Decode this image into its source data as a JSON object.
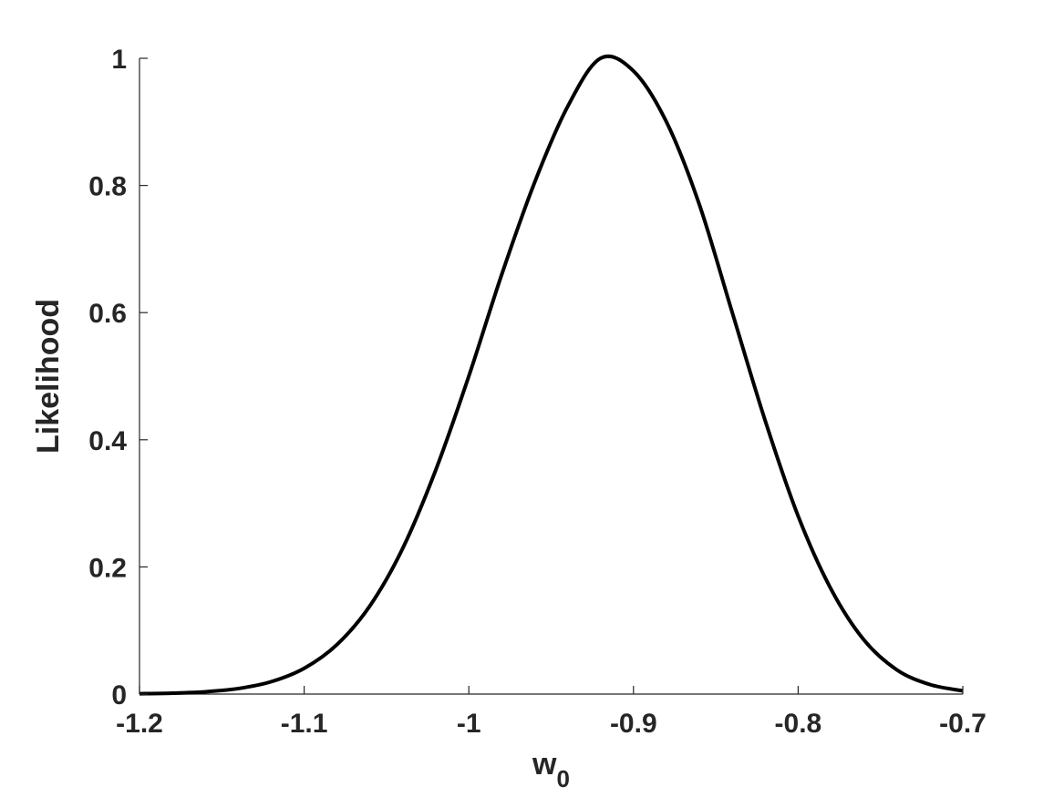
{
  "chart_data": {
    "type": "line",
    "title": "",
    "xlabel_main": "w",
    "xlabel_sub": "0",
    "ylabel": "Likelihood",
    "xlim": [
      -1.2,
      -0.7
    ],
    "ylim": [
      0,
      1
    ],
    "xticks": [
      -1.2,
      -1.1,
      -1.0,
      -0.9,
      -0.8,
      -0.7
    ],
    "xtick_labels": [
      "-1.2",
      "-1.1",
      "-1",
      "-0.9",
      "-0.8",
      "-0.7"
    ],
    "yticks": [
      0,
      0.2,
      0.4,
      0.6,
      0.8,
      1.0
    ],
    "ytick_labels": [
      "0",
      "0.2",
      "0.4",
      "0.6",
      "0.8",
      "1"
    ],
    "grid": false,
    "legend": "none",
    "line_color": "#000000",
    "series": [
      {
        "x": [
          -1.2,
          -1.18,
          -1.16,
          -1.14,
          -1.12,
          -1.1,
          -1.08,
          -1.06,
          -1.04,
          -1.02,
          -1.0,
          -0.98,
          -0.96,
          -0.94,
          -0.92,
          -0.9,
          -0.88,
          -0.86,
          -0.84,
          -0.82,
          -0.8,
          -0.78,
          -0.76,
          -0.74,
          -0.72,
          -0.7
        ],
        "y": [
          0.0005,
          0.0014,
          0.0036,
          0.0087,
          0.0195,
          0.0405,
          0.078,
          0.139,
          0.23,
          0.353,
          0.5,
          0.66,
          0.805,
          0.924,
          1.0,
          0.98,
          0.9,
          0.77,
          0.6,
          0.43,
          0.28,
          0.165,
          0.085,
          0.038,
          0.015,
          0.005
        ]
      }
    ]
  }
}
